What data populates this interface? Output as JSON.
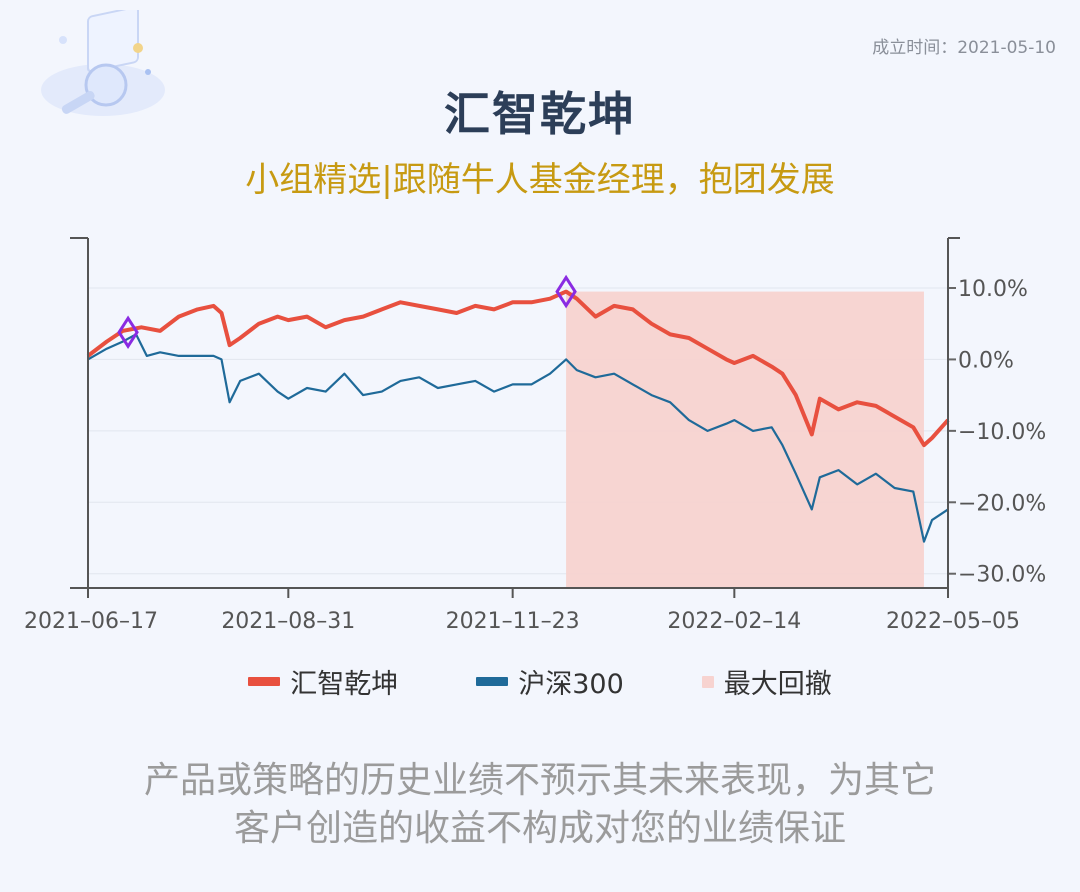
{
  "header": {
    "founded": "成立时间：2021-05-10",
    "title": "汇智乾坤",
    "subtitle": "小组精选|跟随牛人基金经理，抱团发展"
  },
  "chart_data": {
    "type": "line",
    "x_ticks": [
      "2021-06-17",
      "2021-08-31",
      "2021-11-23",
      "2022-02-14",
      "2022-05-05"
    ],
    "y_ticks": [
      "10.0%",
      "0.0%",
      "-10.0%",
      "-20.0%",
      "-30.0%"
    ],
    "ylim": [
      -32,
      17
    ],
    "grid": true,
    "series": [
      {
        "name": "汇智乾坤",
        "color": "#e8503f",
        "points": [
          [
            "2021-06-17",
            0.5
          ],
          [
            "2021-06-24",
            2.5
          ],
          [
            "2021-06-30",
            4.0
          ],
          [
            "2021-07-07",
            4.5
          ],
          [
            "2021-07-14",
            4.0
          ],
          [
            "2021-07-21",
            6.0
          ],
          [
            "2021-07-28",
            7.0
          ],
          [
            "2021-08-03",
            7.5
          ],
          [
            "2021-08-06",
            6.5
          ],
          [
            "2021-08-09",
            2.0
          ],
          [
            "2021-08-13",
            3.0
          ],
          [
            "2021-08-20",
            5.0
          ],
          [
            "2021-08-27",
            6.0
          ],
          [
            "2021-08-31",
            5.5
          ],
          [
            "2021-09-07",
            6.0
          ],
          [
            "2021-09-14",
            4.5
          ],
          [
            "2021-09-21",
            5.5
          ],
          [
            "2021-09-28",
            6.0
          ],
          [
            "2021-10-05",
            7.0
          ],
          [
            "2021-10-12",
            8.0
          ],
          [
            "2021-10-19",
            7.5
          ],
          [
            "2021-10-26",
            7.0
          ],
          [
            "2021-11-02",
            6.5
          ],
          [
            "2021-11-09",
            7.5
          ],
          [
            "2021-11-16",
            7.0
          ],
          [
            "2021-11-23",
            8.0
          ],
          [
            "2021-11-30",
            8.0
          ],
          [
            "2021-12-07",
            8.5
          ],
          [
            "2021-12-13",
            9.5
          ],
          [
            "2021-12-17",
            8.5
          ],
          [
            "2021-12-24",
            6.0
          ],
          [
            "2021-12-31",
            7.5
          ],
          [
            "2022-01-07",
            7.0
          ],
          [
            "2022-01-14",
            5.0
          ],
          [
            "2022-01-21",
            3.5
          ],
          [
            "2022-01-28",
            3.0
          ],
          [
            "2022-02-04",
            1.5
          ],
          [
            "2022-02-11",
            0.0
          ],
          [
            "2022-02-14",
            -0.5
          ],
          [
            "2022-02-21",
            0.5
          ],
          [
            "2022-02-28",
            -1.0
          ],
          [
            "2022-03-04",
            -2.0
          ],
          [
            "2022-03-09",
            -5.0
          ],
          [
            "2022-03-15",
            -10.5
          ],
          [
            "2022-03-18",
            -5.5
          ],
          [
            "2022-03-25",
            -7.0
          ],
          [
            "2022-04-01",
            -6.0
          ],
          [
            "2022-04-08",
            -6.5
          ],
          [
            "2022-04-15",
            -8.0
          ],
          [
            "2022-04-22",
            -9.5
          ],
          [
            "2022-04-26",
            -12.0
          ],
          [
            "2022-04-29",
            -11.0
          ],
          [
            "2022-05-05",
            -8.5
          ]
        ]
      },
      {
        "name": "沪深300",
        "color": "#1f6a99",
        "points": [
          [
            "2021-06-17",
            0.0
          ],
          [
            "2021-06-24",
            1.5
          ],
          [
            "2021-06-30",
            2.5
          ],
          [
            "2021-07-05",
            3.5
          ],
          [
            "2021-07-09",
            0.5
          ],
          [
            "2021-07-14",
            1.0
          ],
          [
            "2021-07-21",
            0.5
          ],
          [
            "2021-07-28",
            0.5
          ],
          [
            "2021-08-03",
            0.5
          ],
          [
            "2021-08-06",
            0.0
          ],
          [
            "2021-08-09",
            -6.0
          ],
          [
            "2021-08-13",
            -3.0
          ],
          [
            "2021-08-20",
            -2.0
          ],
          [
            "2021-08-27",
            -4.5
          ],
          [
            "2021-08-31",
            -5.5
          ],
          [
            "2021-09-07",
            -4.0
          ],
          [
            "2021-09-14",
            -4.5
          ],
          [
            "2021-09-21",
            -2.0
          ],
          [
            "2021-09-28",
            -5.0
          ],
          [
            "2021-10-05",
            -4.5
          ],
          [
            "2021-10-12",
            -3.0
          ],
          [
            "2021-10-19",
            -2.5
          ],
          [
            "2021-10-26",
            -4.0
          ],
          [
            "2021-11-02",
            -3.5
          ],
          [
            "2021-11-09",
            -3.0
          ],
          [
            "2021-11-16",
            -4.5
          ],
          [
            "2021-11-23",
            -3.5
          ],
          [
            "2021-11-30",
            -3.5
          ],
          [
            "2021-12-07",
            -2.0
          ],
          [
            "2021-12-13",
            0.0
          ],
          [
            "2021-12-17",
            -1.5
          ],
          [
            "2021-12-24",
            -2.5
          ],
          [
            "2021-12-31",
            -2.0
          ],
          [
            "2022-01-07",
            -3.5
          ],
          [
            "2022-01-14",
            -5.0
          ],
          [
            "2022-01-21",
            -6.0
          ],
          [
            "2022-01-28",
            -8.5
          ],
          [
            "2022-02-04",
            -10.0
          ],
          [
            "2022-02-11",
            -9.0
          ],
          [
            "2022-02-14",
            -8.5
          ],
          [
            "2022-02-21",
            -10.0
          ],
          [
            "2022-02-28",
            -9.5
          ],
          [
            "2022-03-04",
            -12.0
          ],
          [
            "2022-03-09",
            -16.0
          ],
          [
            "2022-03-15",
            -21.0
          ],
          [
            "2022-03-18",
            -16.5
          ],
          [
            "2022-03-25",
            -15.5
          ],
          [
            "2022-04-01",
            -17.5
          ],
          [
            "2022-04-08",
            -16.0
          ],
          [
            "2022-04-15",
            -18.0
          ],
          [
            "2022-04-22",
            -18.5
          ],
          [
            "2022-04-26",
            -25.5
          ],
          [
            "2022-04-29",
            -22.5
          ],
          [
            "2022-05-05",
            -21.0
          ]
        ]
      }
    ],
    "drawdown": {
      "name": "最大回撤",
      "color": "#f7d3d0",
      "start": "2021-12-13",
      "end": "2022-04-26"
    },
    "markers": [
      {
        "date": "2021-07-02",
        "value": 3.8,
        "color": "#8a2be2"
      },
      {
        "date": "2021-12-13",
        "value": 9.5,
        "color": "#8a2be2"
      }
    ],
    "legend": [
      "汇智乾坤",
      "沪深300",
      "最大回撤"
    ]
  },
  "disclaimer": {
    "line1": "产品或策略的历史业绩不预示其未来表现，为其它",
    "line2": "客户创造的收益不构成对您的业绩保证"
  }
}
